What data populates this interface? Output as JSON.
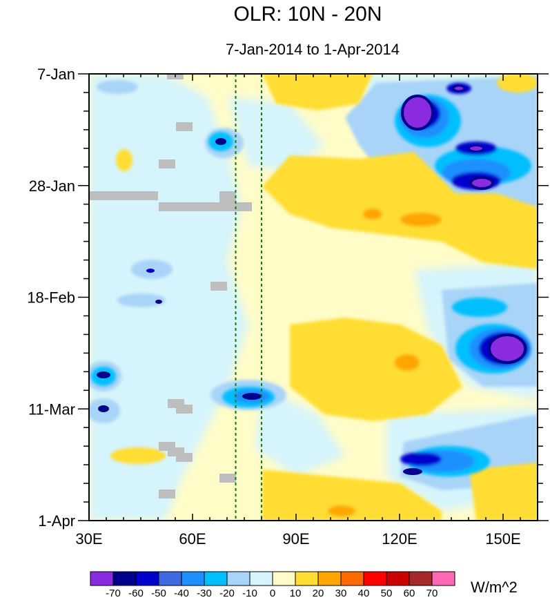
{
  "chart_data": {
    "type": "heatmap",
    "title": "OLR: 10N - 20N",
    "subtitle": "7-Jan-2014 to 1-Apr-2014",
    "xlabel": "",
    "ylabel": "",
    "x_range": [
      30,
      160
    ],
    "x_ticks": [
      {
        "value": 30,
        "label": "30E"
      },
      {
        "value": 60,
        "label": "60E"
      },
      {
        "value": 90,
        "label": "90E"
      },
      {
        "value": 120,
        "label": "120E"
      },
      {
        "value": 150,
        "label": "150E"
      }
    ],
    "y_range_days": [
      0,
      84
    ],
    "y_ticks": [
      {
        "value": 0,
        "label": "7-Jan"
      },
      {
        "value": 21,
        "label": "28-Jan"
      },
      {
        "value": 42,
        "label": "18-Feb"
      },
      {
        "value": 63,
        "label": "11-Mar"
      },
      {
        "value": 84,
        "label": "1-Apr"
      }
    ],
    "reference_lines_lon": [
      72.5,
      80
    ],
    "colorbar": {
      "unit": "W/m^2",
      "levels": [
        "-70",
        "-60",
        "-50",
        "-40",
        "-30",
        "-20",
        "-10",
        "0",
        "10",
        "20",
        "30",
        "40",
        "50",
        "60",
        "70"
      ],
      "colors": [
        "#8a2be2",
        "#00008b",
        "#0000cd",
        "#4169e1",
        "#1e90ff",
        "#00bfff",
        "#a8d4f8",
        "#d6f4fb",
        "#fffcc8",
        "#ffdd33",
        "#ffa500",
        "#ff6a00",
        "#ff0000",
        "#cc0000",
        "#a52a2a",
        "#ff69b4"
      ]
    },
    "missing_color": "#bebebe",
    "anomaly_features": [
      {
        "name": "neg-upper-right",
        "lon": [
          120,
          160
        ],
        "days": [
          2,
          23
        ],
        "min": -70
      },
      {
        "name": "neg-right-mid",
        "lon": [
          141,
          160
        ],
        "days": [
          43,
          58
        ],
        "min": -70
      },
      {
        "name": "neg-lower-right",
        "lon": [
          120,
          146
        ],
        "days": [
          70,
          78
        ],
        "min": -60
      },
      {
        "name": "neg-arabian-sea",
        "lon": [
          66,
          82
        ],
        "days": [
          60,
          65
        ],
        "min": -60
      },
      {
        "name": "neg-left-edge",
        "lon": [
          30,
          40
        ],
        "days": [
          55,
          66
        ],
        "min": -60
      },
      {
        "name": "pos-bay-of-bengal",
        "lon": [
          90,
          120
        ],
        "days": [
          45,
          60
        ],
        "max": 30
      },
      {
        "name": "pos-northeast",
        "lon": [
          90,
          145
        ],
        "days": [
          15,
          33
        ],
        "max": 30
      }
    ]
  }
}
